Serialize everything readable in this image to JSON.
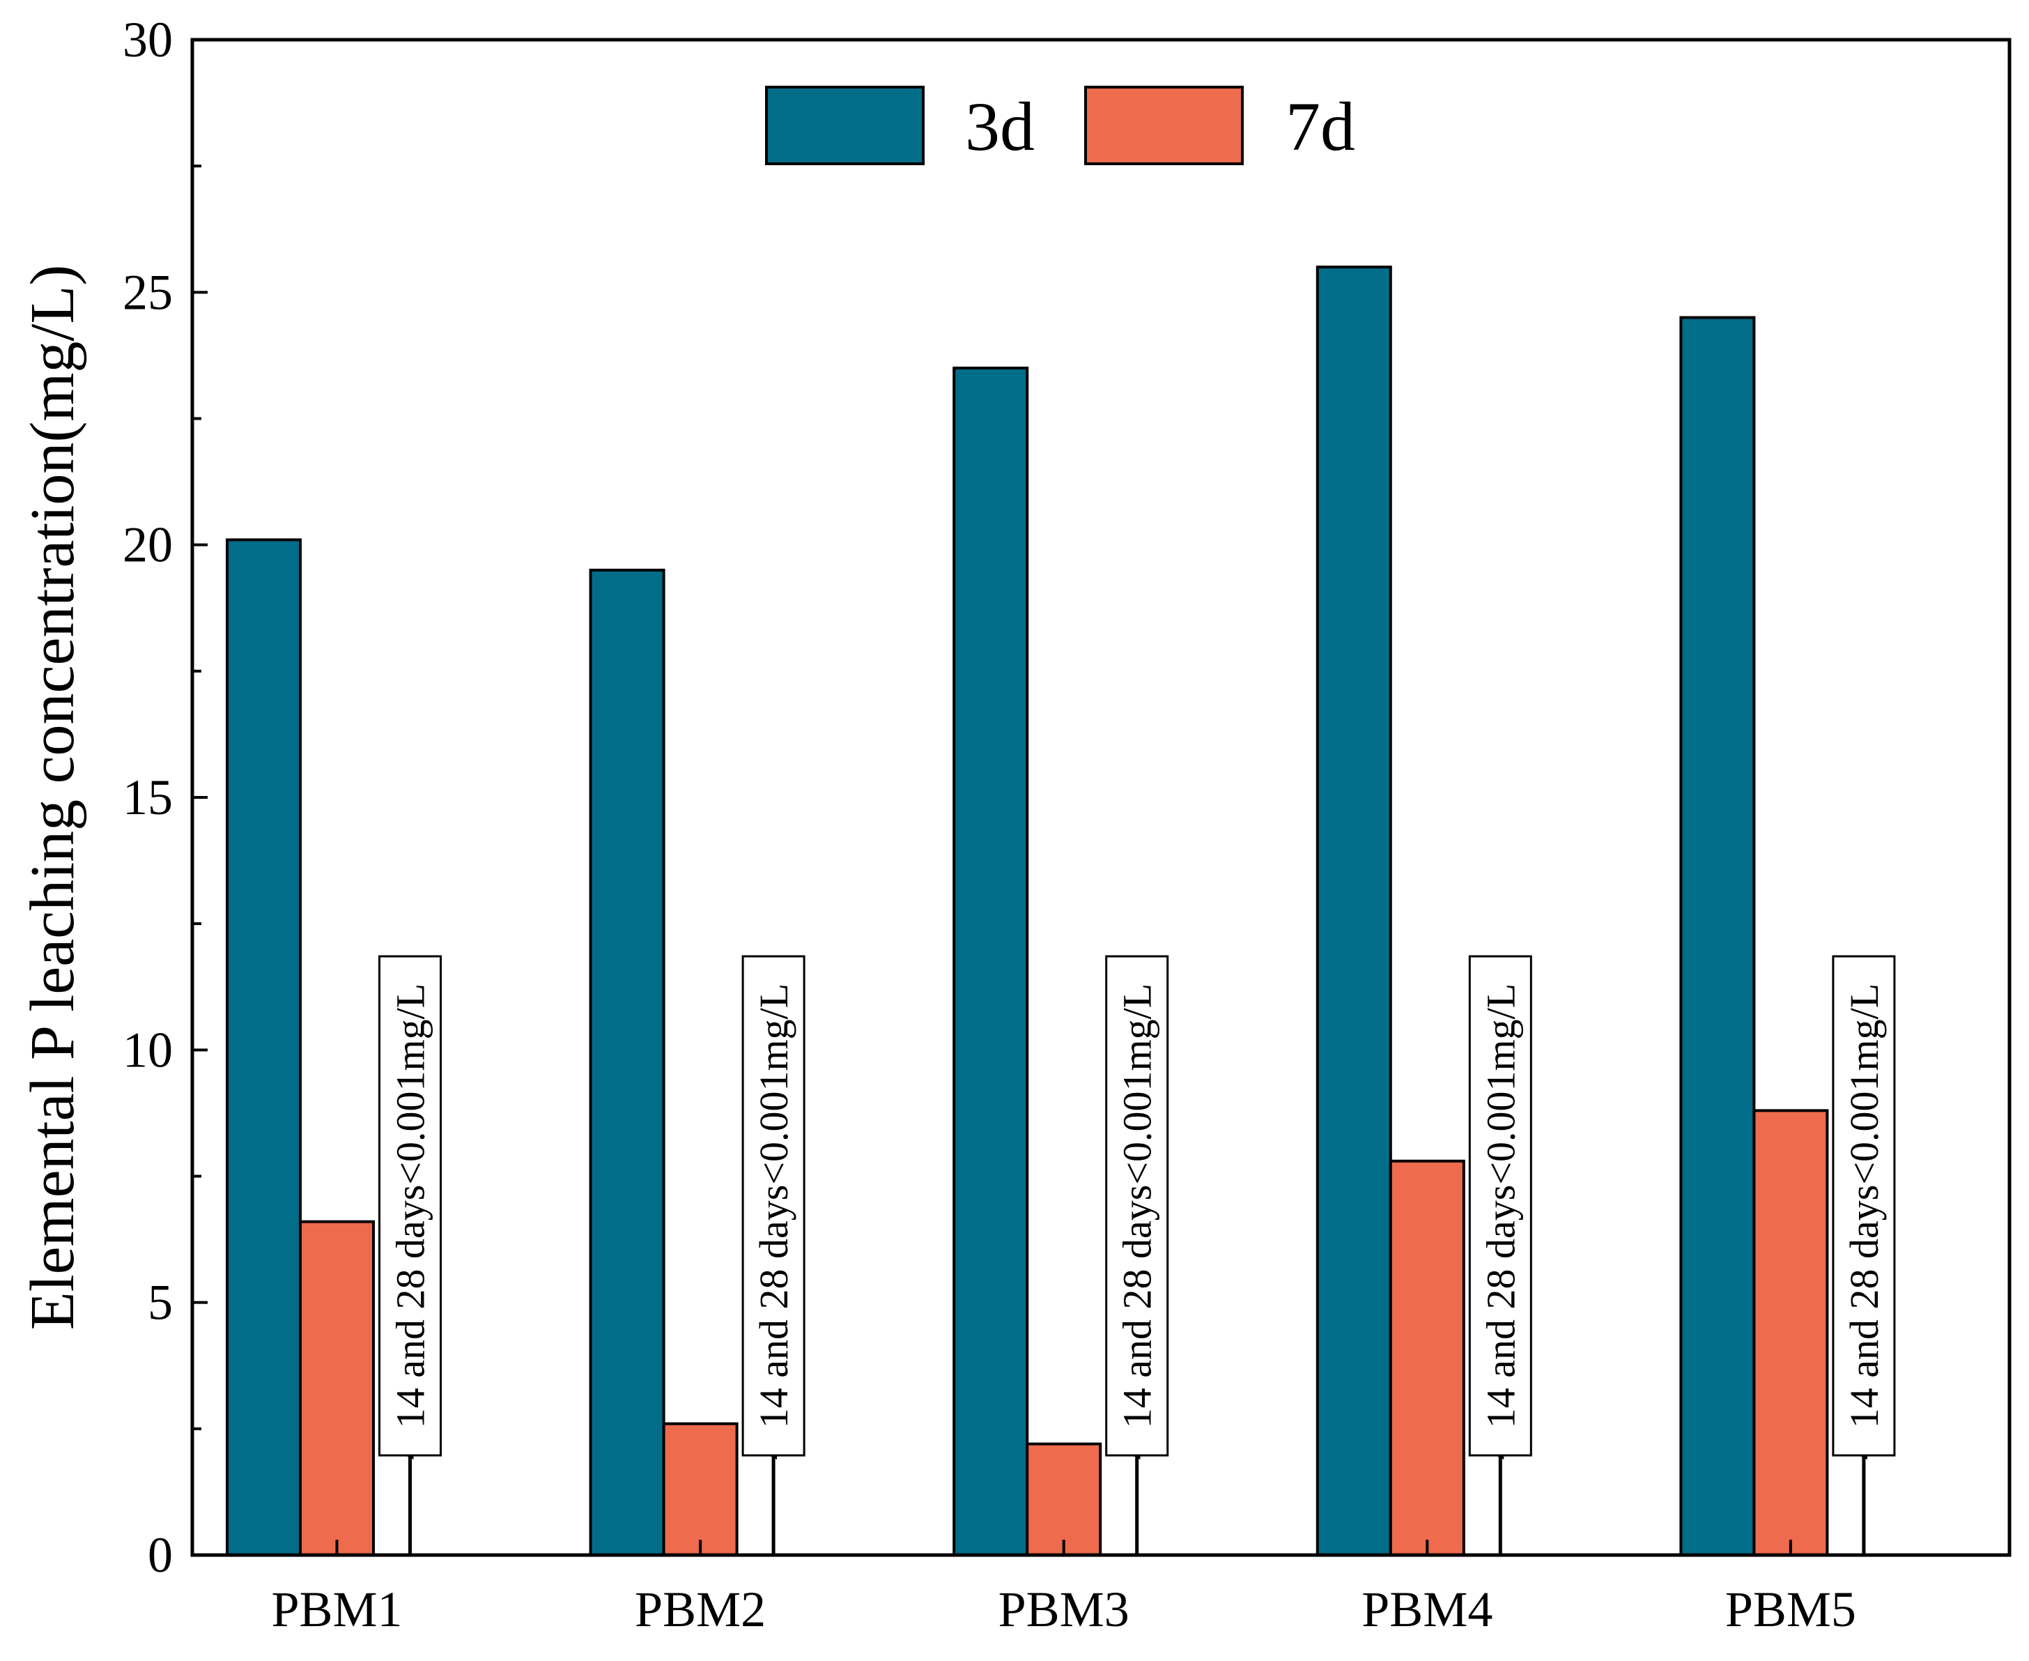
{
  "chart_data": {
    "type": "bar",
    "title": "",
    "xlabel": "",
    "ylabel": "Elemental P leaching concentration(mg/L)",
    "ylim": [
      0,
      30
    ],
    "yticks": [
      "0",
      "5",
      "10",
      "15",
      "20",
      "25",
      "30"
    ],
    "categories": [
      "PBM1",
      "PBM2",
      "PBM3",
      "PBM4",
      "PBM5"
    ],
    "series": [
      {
        "name": "3d",
        "color": "#016d89",
        "values": [
          20.1,
          19.5,
          23.5,
          25.5,
          24.5
        ]
      },
      {
        "name": "7d",
        "color": "#ee6b4d",
        "values": [
          6.6,
          2.6,
          2.2,
          7.8,
          8.8
        ]
      }
    ],
    "legend": {
      "position": "top-center",
      "entries": [
        "3d",
        "7d"
      ]
    },
    "annotations": [
      "14 and 28 days<0.001mg/L",
      "14 and 28 days<0.001mg/L",
      "14 and 28 days<0.001mg/L",
      "14 and 28 days<0.001mg/L",
      "14 and 28 days<0.001mg/L"
    ]
  }
}
